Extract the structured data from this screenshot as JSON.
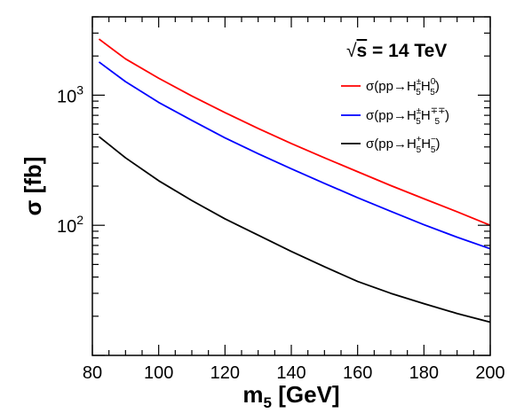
{
  "chart_data": {
    "type": "line",
    "xscale": "linear",
    "yscale": "log",
    "xlim": [
      80,
      200
    ],
    "ylim": [
      10,
      4000
    ],
    "xlabel": {
      "main": "m",
      "sub": "5",
      "unit": " [GeV]"
    },
    "ylabel": "σ [fb]",
    "xticks": [
      80,
      100,
      120,
      140,
      160,
      180,
      200
    ],
    "yticks": [
      {
        "value": 100,
        "base": "10",
        "exp": "2"
      },
      {
        "value": 1000,
        "base": "10",
        "exp": "3"
      }
    ],
    "annotation": {
      "sqrt": "√",
      "s": "s",
      "rest": " = 14 TeV"
    },
    "legend_position": "top-right",
    "x": [
      82,
      90,
      100,
      110,
      120,
      130,
      140,
      150,
      160,
      170,
      180,
      190,
      200
    ],
    "series": [
      {
        "name": "σ(pp→H±5H05)",
        "label": {
          "prefix": "σ(pp→H",
          "sup1": "±",
          "sub1": "5",
          "mid": "H",
          "sup2": "0",
          "sub2": "5",
          "suffix": ")"
        },
        "color": "#ff0000",
        "values": [
          2700,
          1900,
          1350,
          985,
          735,
          555,
          425,
          330,
          258,
          202,
          160,
          127,
          100
        ]
      },
      {
        "name": "σ(pp→H±5H∓∓5)",
        "label": {
          "prefix": "σ(pp→H",
          "sup1": "±",
          "sub1": "5",
          "mid": "H",
          "sup2": "∓∓",
          "sub2": "5",
          "suffix": ")"
        },
        "color": "#0000ff",
        "values": [
          1800,
          1270,
          880,
          640,
          470,
          355,
          272,
          210,
          163,
          128,
          101,
          81,
          66
        ]
      },
      {
        "name": "σ(pp→H+5H−5)",
        "label": {
          "prefix": "σ(pp→H",
          "sup1": "+",
          "sub1": "5",
          "mid": "H",
          "sup2": "−",
          "sub2": "5",
          "suffix": ")"
        },
        "color": "#000000",
        "values": [
          480,
          330,
          220,
          155,
          112,
          84,
          63,
          48,
          37,
          30,
          25,
          21,
          18
        ]
      }
    ]
  }
}
